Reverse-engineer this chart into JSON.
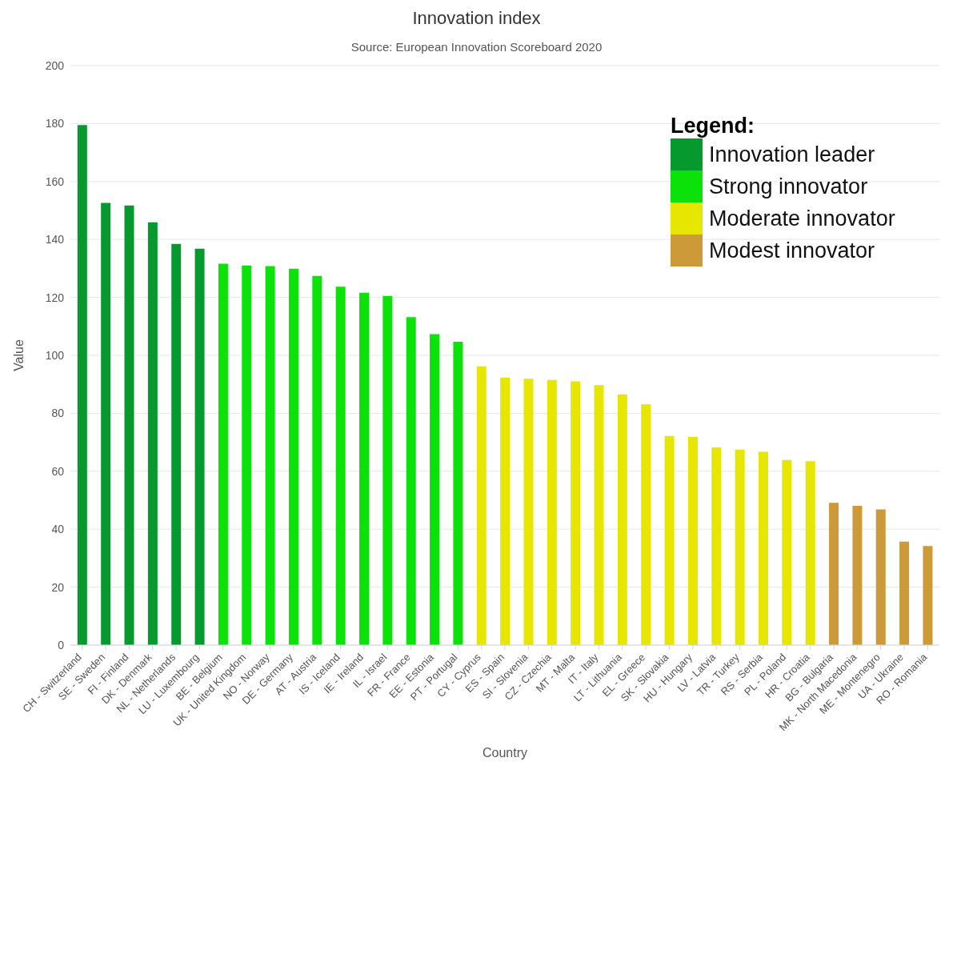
{
  "chart_data": {
    "type": "bar",
    "title": "Innovation index",
    "subtitle": "Source: European Innovation Scoreboard 2020",
    "xlabel": "Country",
    "ylabel": "Value",
    "legend_title": "Legend:",
    "legend": "top right",
    "grid": "y",
    "stacked": true,
    "categories": [
      "CH - Switzerland",
      "SE - Sweden",
      "FI - Finland",
      "DK - Denmark",
      "NL - Netherlands",
      "LU - Luxembourg",
      "BE - Belgium",
      "UK - United Kingdom",
      "NO - Norway",
      "DE - Germany",
      "AT - Austria",
      "IS - Iceland",
      "IE - Ireland",
      "IL - Israel",
      "FR - France",
      "EE - Estonia",
      "PT - Portugal",
      "CY - Cyprus",
      "ES - Spain",
      "SI - Slovenia",
      "CZ - Czechia",
      "MT - Malta",
      "IT - Italy",
      "LT - Lithuania",
      "EL - Greece",
      "SK - Slovakia",
      "HU - Hungary",
      "LV - Latvia",
      "TR - Turkey",
      "RS - Serbia",
      "PL - Poland",
      "HR - Croatia",
      "BG - Bulgaria",
      "MK - North Macedonia",
      "ME - Montenegro",
      "UA - Ukraine",
      "RO - Romania"
    ],
    "ylim": [
      0,
      200
    ],
    "yticks": [
      0,
      20,
      40,
      60,
      80,
      100,
      120,
      140,
      160,
      180,
      200
    ],
    "series": [
      {
        "name": "Innovation leader",
        "color": "#069a2e",
        "values": [
          179.5,
          152.6,
          151.7,
          145.9,
          138.5,
          136.8,
          null,
          null,
          null,
          null,
          null,
          null,
          null,
          null,
          null,
          null,
          null,
          null,
          null,
          null,
          null,
          null,
          null,
          null,
          null,
          null,
          null,
          null,
          null,
          null,
          null,
          null,
          null,
          null,
          null,
          null,
          null
        ]
      },
      {
        "name": "Strong innovator",
        "color": "#0ae20a",
        "values": [
          null,
          null,
          null,
          null,
          null,
          null,
          131.6,
          131.0,
          130.8,
          129.9,
          127.4,
          123.7,
          121.6,
          120.5,
          113.2,
          107.3,
          104.7,
          null,
          null,
          null,
          null,
          null,
          null,
          null,
          null,
          null,
          null,
          null,
          null,
          null,
          null,
          null,
          null,
          null,
          null,
          null,
          null
        ]
      },
      {
        "name": "Moderate innovator",
        "color": "#e6e600",
        "values": [
          null,
          null,
          null,
          null,
          null,
          null,
          null,
          null,
          null,
          null,
          null,
          null,
          null,
          null,
          null,
          null,
          null,
          96.2,
          92.3,
          91.9,
          91.5,
          91.0,
          89.7,
          86.5,
          83.1,
          72.2,
          71.8,
          68.2,
          67.5,
          66.7,
          63.9,
          63.5,
          null,
          null,
          null,
          null,
          null
        ]
      },
      {
        "name": "Modest innovator",
        "color": "#cd9a3a",
        "values": [
          null,
          null,
          null,
          null,
          null,
          null,
          null,
          null,
          null,
          null,
          null,
          null,
          null,
          null,
          null,
          null,
          null,
          null,
          null,
          null,
          null,
          null,
          null,
          null,
          null,
          null,
          null,
          null,
          null,
          null,
          null,
          null,
          49.1,
          48.1,
          46.8,
          35.7,
          34.2
        ]
      }
    ]
  }
}
